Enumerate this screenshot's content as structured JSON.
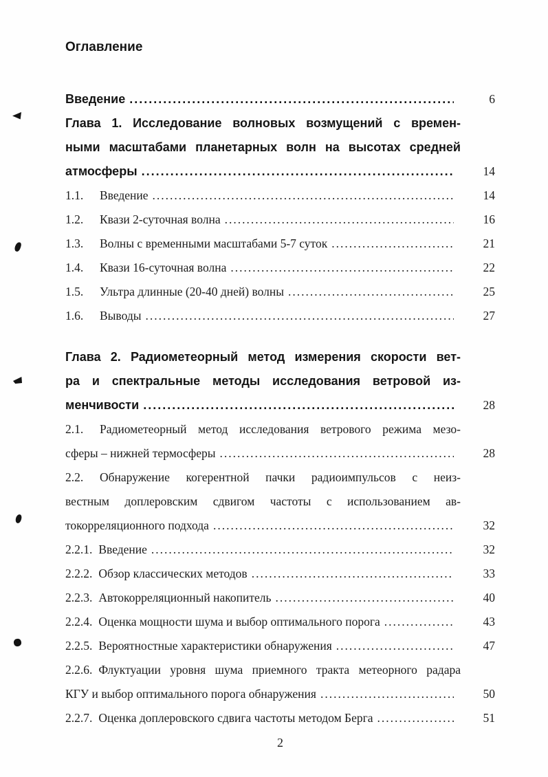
{
  "colors": {
    "paper": "#fefefe",
    "ink": "#1c1c1c"
  },
  "document": {
    "heading": "Оглавление",
    "footer_page_number": "2",
    "toc": {
      "rows": [
        {
          "text": "Введение",
          "page": "6"
        },
        {
          "text": "Глава 1. Исследование волновых возмущений с времен-"
        },
        {
          "text": "ными масштабами планетарных волн на высотах средней"
        },
        {
          "text": "атмосферы",
          "page": "14"
        },
        {
          "num": "1.1.",
          "text": "Введение",
          "page": "14"
        },
        {
          "num": "1.2.",
          "text": "Квази 2-суточная волна",
          "page": "16"
        },
        {
          "num": "1.3.",
          "text": "Волны с временными масштабами 5-7 суток",
          "page": "21"
        },
        {
          "num": "1.4.",
          "text": "Квази 16-суточная волна",
          "page": "22"
        },
        {
          "num": "1.5.",
          "text": "Ультра длинные (20-40 дней) волны",
          "page": "25"
        },
        {
          "num": "1.6.",
          "text": "Выводы",
          "page": "27"
        },
        {
          "text": "Глава 2. Радиометеорный метод измерения скорости вет-"
        },
        {
          "text": "ра и спектральные методы исследования ветровой из-"
        },
        {
          "text": "менчивости",
          "page": "28"
        },
        {
          "num": "2.1.",
          "text": "Радиометеорный метод исследования ветрового режима мезо-"
        },
        {
          "text": "сферы – нижней термосферы",
          "page": "28"
        },
        {
          "num": "2.2.",
          "text": "Обнаружение когерентной пачки радиоимпульсов с неиз-"
        },
        {
          "text": "вестным доплеровским сдвигом частоты с использованием ав-"
        },
        {
          "text": "токорреляционного подхода",
          "page": "32"
        },
        {
          "num": "2.2.1.",
          "text": "Введение",
          "page": "32"
        },
        {
          "num": "2.2.2.",
          "text": "Обзор классических методов",
          "page": "33"
        },
        {
          "num": "2.2.3.",
          "text": "Автокорреляционный накопитель",
          "page": "40"
        },
        {
          "num": "2.2.4.",
          "text": "Оценка мощности шума и выбор оптимального порога",
          "page": "43"
        },
        {
          "num": "2.2.5.",
          "text": "Вероятностные характеристики обнаружения",
          "page": "47"
        },
        {
          "num": "2.2.6.",
          "text": "Флуктуации уровня шума приемного тракта метеорного радара"
        },
        {
          "text": "КГУ и выбор оптимального порога обнаружения",
          "page": "50"
        },
        {
          "num": "2.2.7.",
          "text": "Оценка доплеровского сдвига частоты методом Берга",
          "page": "51"
        }
      ]
    }
  }
}
